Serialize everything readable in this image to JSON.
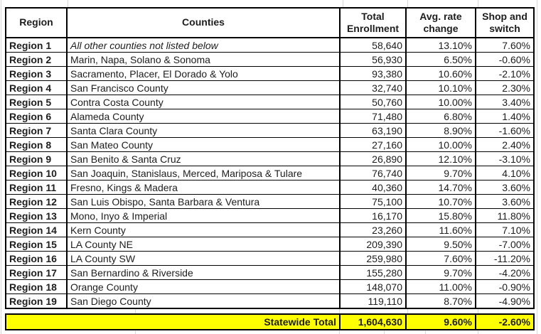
{
  "colors": {
    "highlight": "#FFFF00",
    "border": "#000000",
    "gridline": "#D8D8D8",
    "text": "#1D1D1D"
  },
  "chart_data": {
    "type": "table",
    "title": "",
    "columns": [
      "Region",
      "Counties",
      "Total Enrollment",
      "Avg. rate change",
      "Shop and switch"
    ],
    "rows": [
      [
        "Region 1",
        "All other counties not listed below",
        "58,640",
        "13.10%",
        "7.60%"
      ],
      [
        "Region 2",
        "Marin, Napa, Solano & Sonoma",
        "56,930",
        "6.50%",
        "-0.60%"
      ],
      [
        "Region 3",
        "Sacramento, Placer, El Dorado & Yolo",
        "93,380",
        "10.60%",
        "-2.10%"
      ],
      [
        "Region 4",
        "San Francisco County",
        "32,740",
        "10.10%",
        "2.30%"
      ],
      [
        "Region 5",
        "Contra Costa County",
        "50,760",
        "10.00%",
        "3.40%"
      ],
      [
        "Region 6",
        "Alameda County",
        "71,480",
        "6.80%",
        "1.40%"
      ],
      [
        "Region 7",
        "Santa Clara County",
        "63,190",
        "8.90%",
        "-1.60%"
      ],
      [
        "Region 8",
        "San Mateo County",
        "27,160",
        "10.00%",
        "2.40%"
      ],
      [
        "Region 9",
        "San Benito & Santa Cruz",
        "26,890",
        "12.10%",
        "-3.10%"
      ],
      [
        "Region 10",
        "San Joaquin, Stanislaus, Merced, Mariposa & Tulare",
        "76,740",
        "9.70%",
        "4.10%"
      ],
      [
        "Region 11",
        "Fresno, Kings & Madera",
        "40,360",
        "14.70%",
        "3.60%"
      ],
      [
        "Region 12",
        "San Luis Obispo, Santa Barbara & Ventura",
        "75,100",
        "10.70%",
        "3.60%"
      ],
      [
        "Region 13",
        "Mono, Inyo & Imperial",
        "16,170",
        "15.80%",
        "11.80%"
      ],
      [
        "Region 14",
        "Kern County",
        "23,260",
        "11.60%",
        "7.10%"
      ],
      [
        "Region 15",
        "LA County NE",
        "209,390",
        "9.50%",
        "-7.00%"
      ],
      [
        "Region 16",
        "LA County SW",
        "259,980",
        "7.60%",
        "-11.20%"
      ],
      [
        "Region 17",
        "San Bernardino & Riverside",
        "155,280",
        "9.70%",
        "-4.20%"
      ],
      [
        "Region 18",
        "Orange County",
        "148,070",
        "11.00%",
        "-0.90%"
      ],
      [
        "Region 19",
        "San Diego County",
        "119,110",
        "8.70%",
        "-4.90%"
      ]
    ],
    "italic_counties_rows": [
      0
    ],
    "total_row": [
      "Statewide Total",
      "1,604,630",
      "9.60%",
      "-2.60%"
    ],
    "legend_position": "none",
    "grid": "spreadsheet-gridlines-in-margins"
  }
}
